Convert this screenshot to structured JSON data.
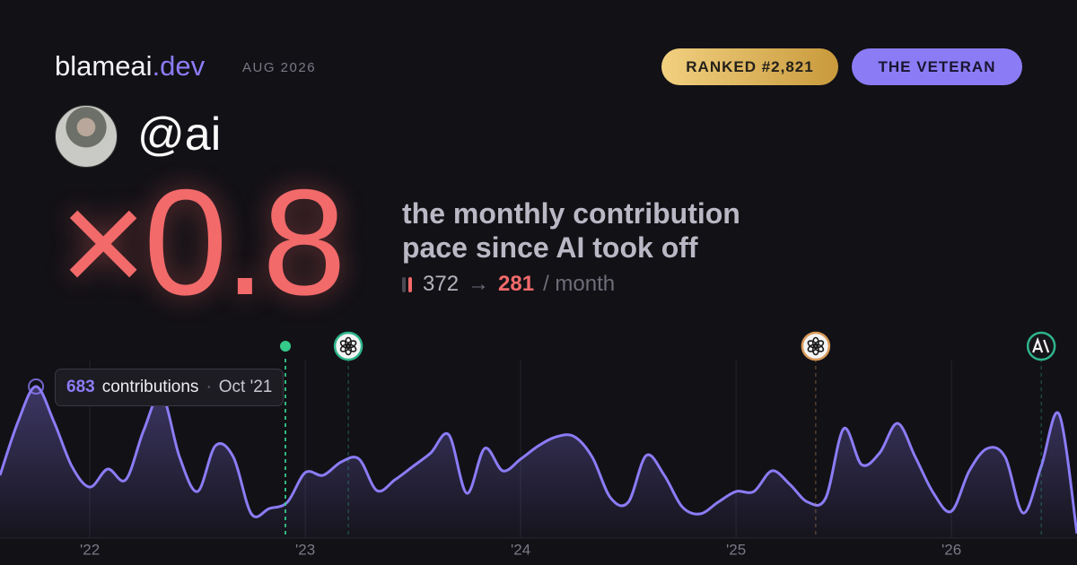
{
  "header": {
    "brand": "blameai",
    "brand_suffix": ".dev",
    "date": "AUG 2026",
    "rank": "RANKED #2,821",
    "badge": "THE VETERAN"
  },
  "profile": {
    "handle": "@ai"
  },
  "headline": {
    "multiplier": "×0.8",
    "line1": "the monthly contribution",
    "line2": "pace since AI took off",
    "before": 372,
    "arrow": "→",
    "after": 281,
    "unit": "/ month"
  },
  "tooltip": {
    "unit": "contributions",
    "separator": "·",
    "date": "Oct '21"
  },
  "chart_data": {
    "type": "area",
    "color": "#8b7cf6",
    "x": [
      2021.583,
      2021.667,
      2021.75,
      2021.833,
      2021.917,
      2022.0,
      2022.083,
      2022.167,
      2022.25,
      2022.333,
      2022.417,
      2022.5,
      2022.583,
      2022.667,
      2022.75,
      2022.833,
      2022.917,
      2023.0,
      2023.083,
      2023.167,
      2023.25,
      2023.333,
      2023.417,
      2023.5,
      2023.583,
      2023.667,
      2023.75,
      2023.833,
      2023.917,
      2024.0,
      2024.083,
      2024.167,
      2024.25,
      2024.333,
      2024.417,
      2024.5,
      2024.583,
      2024.667,
      2024.75,
      2024.833,
      2024.917,
      2025.0,
      2025.083,
      2025.167,
      2025.25,
      2025.333,
      2025.417,
      2025.5,
      2025.583,
      2025.667,
      2025.75,
      2025.833,
      2025.917,
      2026.0,
      2026.083,
      2026.167,
      2026.25,
      2026.333,
      2026.417,
      2026.5,
      2026.583
    ],
    "values": [
      283,
      525,
      683,
      525,
      323,
      230,
      311,
      263,
      485,
      646,
      364,
      210,
      416,
      364,
      109,
      133,
      162,
      295,
      283,
      343,
      356,
      214,
      263,
      323,
      384,
      465,
      202,
      404,
      303,
      356,
      416,
      457,
      457,
      364,
      182,
      162,
      372,
      283,
      141,
      109,
      162,
      210,
      210,
      303,
      242,
      162,
      182,
      493,
      331,
      384,
      517,
      364,
      202,
      121,
      303,
      404,
      364,
      113,
      323,
      558,
      20
    ],
    "xlim": [
      2021.583,
      2026.583
    ],
    "ylim": [
      0,
      800
    ],
    "xticks": [
      {
        "value": 2022,
        "label": "'22"
      },
      {
        "value": 2023,
        "label": "'23"
      },
      {
        "value": 2024,
        "label": "'24"
      },
      {
        "value": 2025,
        "label": "'25"
      },
      {
        "value": 2026,
        "label": "'26"
      }
    ],
    "grid": true,
    "events": [
      {
        "x": 2022.908,
        "style": "dot"
      },
      {
        "x": 2023.2,
        "style": "openai"
      },
      {
        "x": 2025.37,
        "style": "openai-orange"
      },
      {
        "x": 2026.417,
        "style": "anthropic"
      }
    ]
  }
}
